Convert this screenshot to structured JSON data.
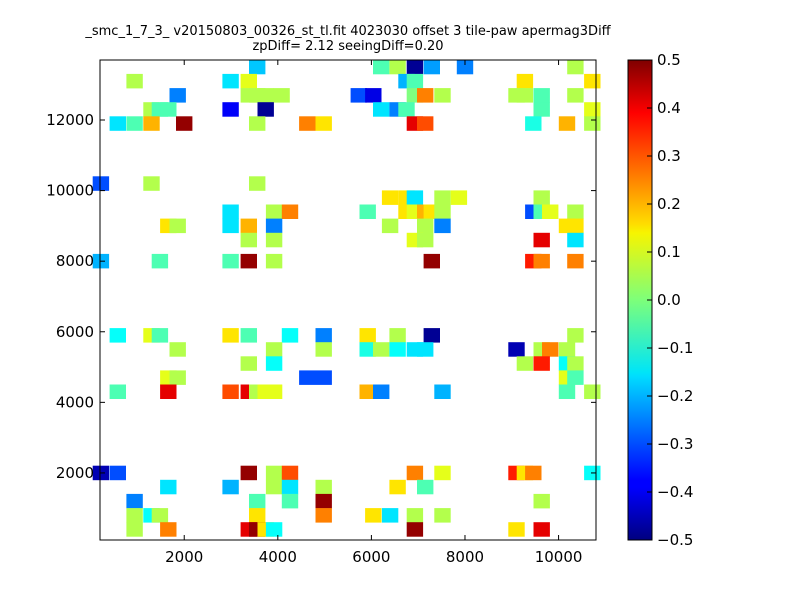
{
  "chart_data": {
    "type": "heatmap",
    "title": "_smc_1_7_3_ v20150803_00326_st_tl.fit 4023030 offset 3 tile-paw apermag3Diff",
    "subtitle": "zpDiff= 2.12 seeingDiff=0.20",
    "xlabel": "",
    "ylabel": "",
    "xlim": [
      200,
      10800
    ],
    "ylim": [
      100,
      13700
    ],
    "x_ticks": [
      "2000",
      "4000",
      "6000",
      "8000",
      "10000"
    ],
    "y_ticks": [
      "2000",
      "4000",
      "6000",
      "8000",
      "10000",
      "12000"
    ],
    "colorbar": {
      "colormap": "jet",
      "min": -0.5,
      "max": 0.5,
      "ticks": [
        "0.5",
        "0.4",
        "0.3",
        "0.2",
        "0.1",
        "0.0",
        "−0.1",
        "−0.2",
        "−0.3",
        "−0.4",
        "−0.5"
      ]
    },
    "cell_size": [
      350,
      410
    ],
    "cells": [
      [
        3560,
        13500,
        -0.18
      ],
      [
        6210,
        13500,
        -0.05
      ],
      [
        6560,
        13500,
        0.05
      ],
      [
        6930,
        13500,
        -0.48
      ],
      [
        7290,
        13500,
        -0.22
      ],
      [
        8000,
        13500,
        -0.25
      ],
      [
        10360,
        13500,
        0.05
      ],
      [
        940,
        13100,
        0.05
      ],
      [
        2990,
        13100,
        -0.15
      ],
      [
        3380,
        13100,
        0.1
      ],
      [
        6750,
        13100,
        -0.2
      ],
      [
        6930,
        13100,
        -0.05
      ],
      [
        9280,
        13100,
        0.15
      ],
      [
        10720,
        13100,
        0.15
      ],
      [
        1860,
        12700,
        -0.25
      ],
      [
        3380,
        12700,
        0.05
      ],
      [
        3560,
        12700,
        0.05
      ],
      [
        3740,
        12700,
        0.05
      ],
      [
        4080,
        12700,
        0.05
      ],
      [
        5730,
        12700,
        -0.3
      ],
      [
        6040,
        12700,
        -0.4
      ],
      [
        6930,
        12700,
        0.0
      ],
      [
        7150,
        12700,
        0.25
      ],
      [
        7520,
        12700,
        0.05
      ],
      [
        9100,
        12700,
        0.05
      ],
      [
        9280,
        12700,
        0.05
      ],
      [
        9640,
        12700,
        -0.05
      ],
      [
        10360,
        12700,
        0.05
      ],
      [
        1300,
        12300,
        0.05
      ],
      [
        1480,
        12300,
        -0.05
      ],
      [
        1660,
        12300,
        -0.05
      ],
      [
        2990,
        12300,
        -0.38
      ],
      [
        3740,
        12300,
        -0.48
      ],
      [
        6210,
        12300,
        -0.15
      ],
      [
        6560,
        12300,
        -0.25
      ],
      [
        6750,
        12300,
        -0.05
      ],
      [
        9640,
        12300,
        -0.05
      ],
      [
        10720,
        12300,
        0.1
      ],
      [
        580,
        11900,
        -0.15
      ],
      [
        940,
        11900,
        -0.05
      ],
      [
        1300,
        11900,
        0.2
      ],
      [
        2000,
        11900,
        0.48
      ],
      [
        3560,
        11900,
        0.05
      ],
      [
        4630,
        11900,
        0.25
      ],
      [
        4980,
        11900,
        0.15
      ],
      [
        6930,
        11900,
        0.4
      ],
      [
        7150,
        11900,
        0.3
      ],
      [
        9460,
        11900,
        -0.1
      ],
      [
        10180,
        11900,
        0.2
      ],
      [
        10720,
        11900,
        0.05
      ],
      [
        220,
        10200,
        -0.3
      ],
      [
        1300,
        10200,
        0.05
      ],
      [
        3560,
        10200,
        0.05
      ],
      [
        6400,
        9800,
        0.15
      ],
      [
        6750,
        9800,
        0.15
      ],
      [
        6930,
        9800,
        -0.15
      ],
      [
        7520,
        9800,
        0.05
      ],
      [
        7870,
        9800,
        0.1
      ],
      [
        9640,
        9800,
        0.05
      ],
      [
        2990,
        9400,
        -0.15
      ],
      [
        3920,
        9400,
        0.05
      ],
      [
        4260,
        9400,
        0.25
      ],
      [
        5920,
        9400,
        -0.05
      ],
      [
        6750,
        9400,
        0.15
      ],
      [
        6930,
        9400,
        0.1
      ],
      [
        7150,
        9400,
        0.2
      ],
      [
        7290,
        9400,
        0.15
      ],
      [
        7520,
        9400,
        0.05
      ],
      [
        9460,
        9400,
        -0.3
      ],
      [
        9640,
        9400,
        -0.05
      ],
      [
        9820,
        9400,
        0.1
      ],
      [
        10360,
        9400,
        0.05
      ],
      [
        1660,
        9000,
        0.15
      ],
      [
        1860,
        9000,
        0.05
      ],
      [
        2990,
        9000,
        -0.15
      ],
      [
        3380,
        9000,
        0.2
      ],
      [
        3920,
        9000,
        -0.25
      ],
      [
        6400,
        9000,
        0.05
      ],
      [
        7150,
        9000,
        0.05
      ],
      [
        7520,
        9000,
        -0.25
      ],
      [
        10180,
        9000,
        0.15
      ],
      [
        10360,
        9000,
        0.15
      ],
      [
        3380,
        8600,
        0.05
      ],
      [
        3920,
        8600,
        0.05
      ],
      [
        6930,
        8600,
        0.1
      ],
      [
        7150,
        8600,
        0.05
      ],
      [
        9640,
        8600,
        0.4
      ],
      [
        10360,
        8600,
        -0.15
      ],
      [
        220,
        8000,
        -0.2
      ],
      [
        1480,
        8000,
        -0.05
      ],
      [
        2990,
        8000,
        -0.05
      ],
      [
        3380,
        8000,
        0.48
      ],
      [
        3920,
        8000,
        0.05
      ],
      [
        7290,
        8000,
        0.48
      ],
      [
        9460,
        8000,
        0.35
      ],
      [
        9640,
        8000,
        0.25
      ],
      [
        10360,
        8000,
        0.25
      ],
      [
        580,
        5900,
        -0.12
      ],
      [
        1300,
        5900,
        0.1
      ],
      [
        1480,
        5900,
        -0.05
      ],
      [
        2990,
        5900,
        0.15
      ],
      [
        3380,
        5900,
        -0.05
      ],
      [
        4260,
        5900,
        -0.12
      ],
      [
        4980,
        5900,
        -0.25
      ],
      [
        5920,
        5900,
        0.15
      ],
      [
        6560,
        5900,
        0.05
      ],
      [
        7290,
        5900,
        -0.48
      ],
      [
        10360,
        5900,
        0.05
      ],
      [
        1860,
        5500,
        0.05
      ],
      [
        3920,
        5500,
        0.05
      ],
      [
        4980,
        5500,
        0.05
      ],
      [
        5920,
        5500,
        -0.1
      ],
      [
        6210,
        5500,
        0.05
      ],
      [
        6560,
        5500,
        -0.12
      ],
      [
        6930,
        5500,
        -0.15
      ],
      [
        7150,
        5500,
        -0.15
      ],
      [
        9100,
        5500,
        -0.45
      ],
      [
        9640,
        5500,
        0.05
      ],
      [
        9820,
        5500,
        0.25
      ],
      [
        10180,
        5500,
        0.05
      ],
      [
        3380,
        5100,
        0.05
      ],
      [
        3920,
        5100,
        -0.12
      ],
      [
        9280,
        5100,
        0.05
      ],
      [
        9640,
        5100,
        0.35
      ],
      [
        10180,
        5100,
        -0.12
      ],
      [
        10360,
        5100,
        0.05
      ],
      [
        1660,
        4700,
        0.1
      ],
      [
        1860,
        4700,
        0.05
      ],
      [
        4630,
        4700,
        -0.3
      ],
      [
        4980,
        4700,
        -0.3
      ],
      [
        10180,
        4700,
        0.1
      ],
      [
        10360,
        4700,
        -0.05
      ],
      [
        580,
        4300,
        -0.05
      ],
      [
        1660,
        4300,
        0.4
      ],
      [
        2990,
        4300,
        0.3
      ],
      [
        3380,
        4300,
        0.4
      ],
      [
        3560,
        4300,
        0.05
      ],
      [
        3740,
        4300,
        0.1
      ],
      [
        3920,
        4300,
        0.1
      ],
      [
        5920,
        4300,
        0.2
      ],
      [
        6210,
        4300,
        -0.25
      ],
      [
        7520,
        4300,
        -0.2
      ],
      [
        10180,
        4300,
        -0.05
      ],
      [
        10720,
        4300,
        0.05
      ],
      [
        220,
        2000,
        -0.45
      ],
      [
        580,
        2000,
        -0.3
      ],
      [
        3380,
        2000,
        0.48
      ],
      [
        3920,
        2000,
        0.05
      ],
      [
        4260,
        2000,
        0.3
      ],
      [
        6930,
        2000,
        0.25
      ],
      [
        7520,
        2000,
        0.1
      ],
      [
        9100,
        2000,
        0.35
      ],
      [
        9280,
        2000,
        0.15
      ],
      [
        9460,
        2000,
        0.25
      ],
      [
        10720,
        2000,
        -0.12
      ],
      [
        1660,
        1600,
        -0.15
      ],
      [
        2990,
        1600,
        -0.2
      ],
      [
        3920,
        1600,
        0.05
      ],
      [
        4260,
        1600,
        -0.15
      ],
      [
        4980,
        1600,
        0.05
      ],
      [
        6560,
        1600,
        0.15
      ],
      [
        7150,
        1600,
        -0.05
      ],
      [
        940,
        1200,
        -0.25
      ],
      [
        3560,
        1200,
        -0.05
      ],
      [
        4260,
        1200,
        -0.05
      ],
      [
        4980,
        1200,
        0.48
      ],
      [
        9640,
        1200,
        0.05
      ],
      [
        940,
        800,
        0.05
      ],
      [
        1300,
        800,
        -0.12
      ],
      [
        1480,
        800,
        0.05
      ],
      [
        3560,
        800,
        0.15
      ],
      [
        4980,
        800,
        0.25
      ],
      [
        6040,
        800,
        0.15
      ],
      [
        6400,
        800,
        -0.15
      ],
      [
        6930,
        800,
        0.05
      ],
      [
        7520,
        800,
        0.05
      ],
      [
        940,
        400,
        0.05
      ],
      [
        1660,
        400,
        0.25
      ],
      [
        3380,
        400,
        0.4
      ],
      [
        3560,
        400,
        0.48
      ],
      [
        3740,
        400,
        0.15
      ],
      [
        3920,
        400,
        -0.12
      ],
      [
        6930,
        400,
        0.48
      ],
      [
        9100,
        400,
        0.15
      ],
      [
        9640,
        400,
        0.4
      ]
    ]
  }
}
